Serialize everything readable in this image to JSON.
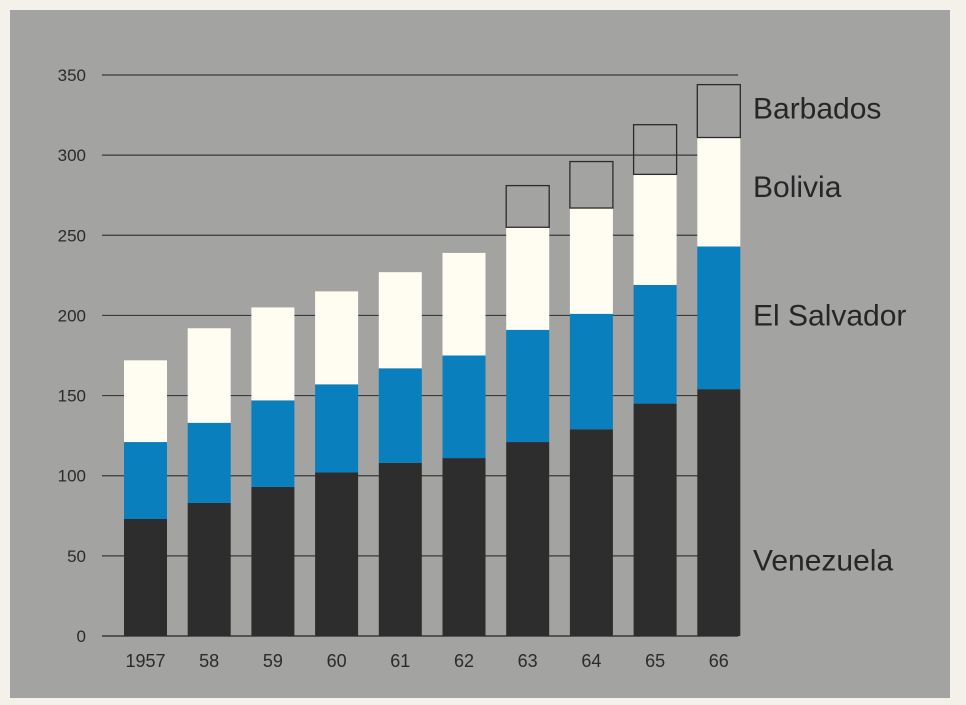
{
  "chart_data": {
    "type": "bar",
    "stacked": true,
    "categories": [
      "1957",
      "58",
      "59",
      "60",
      "61",
      "62",
      "63",
      "64",
      "65",
      "66"
    ],
    "series": [
      {
        "name": "Venezuela",
        "color": "#2d2d2d",
        "values": [
          73,
          83,
          93,
          102,
          108,
          111,
          121,
          129,
          145,
          154
        ]
      },
      {
        "name": "El Salvador",
        "color": "#0a7fbd",
        "values": [
          48,
          50,
          54,
          55,
          59,
          64,
          70,
          72,
          74,
          89
        ]
      },
      {
        "name": "Bolivia",
        "color": "#fffdf2",
        "values": [
          51,
          59,
          58,
          58,
          60,
          64,
          64,
          66,
          69,
          68
        ]
      },
      {
        "name": "Barbados",
        "color": "none",
        "values": [
          0,
          0,
          0,
          0,
          0,
          0,
          26,
          29,
          31,
          33
        ]
      }
    ],
    "yticks": [
      0,
      50,
      100,
      150,
      200,
      250,
      300,
      350
    ],
    "ylim": [
      0,
      350
    ],
    "grid": true,
    "legend_placement": "right, labels aligned with stack segments",
    "title": "",
    "xlabel": "",
    "ylabel": ""
  }
}
